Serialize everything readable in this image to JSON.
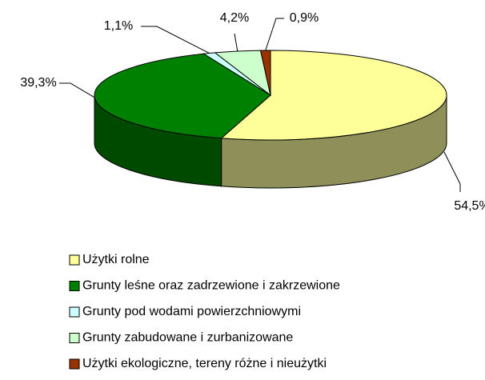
{
  "chart_data": {
    "type": "pie3d",
    "categories": [
      "Użytki rolne",
      "Grunty leśne oraz zadrzewione i zakrzewione",
      "Grunty pod wodami powierzchniowymi",
      "Grunty zabudowane i zurbanizowane",
      "Użytki ekologiczne, tereny różne i nieużytki"
    ],
    "values": [
      54.5,
      39.3,
      1.1,
      4.2,
      0.9
    ],
    "value_labels": [
      "54,5%",
      "39,3%",
      "1,1%",
      "4,2%",
      "0,9%"
    ],
    "colors": [
      "#ffff99",
      "#008000",
      "#ccffff",
      "#ccffcc",
      "#993300"
    ],
    "side_colors": [
      "#8f8f5a",
      "#004a00",
      "#7fa0a0",
      "#7fa07f",
      "#5a1e00"
    ]
  }
}
